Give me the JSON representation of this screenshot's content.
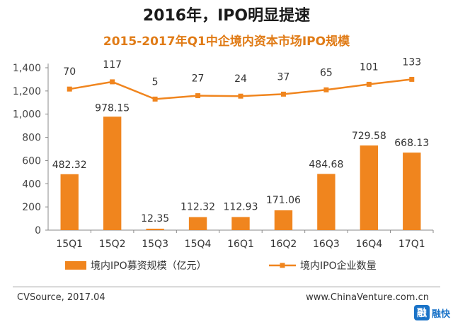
{
  "header": {
    "title": "2016年，IPO明显提速"
  },
  "chart_data": {
    "type": "bar",
    "title": "2015-2017年Q1中企境内资本市场IPO规模",
    "categories": [
      "15Q1",
      "15Q2",
      "15Q3",
      "15Q4",
      "16Q1",
      "16Q2",
      "16Q3",
      "16Q4",
      "17Q1"
    ],
    "series": [
      {
        "name": "境内IPO募资规模（亿元）",
        "type": "bar",
        "axis": "left",
        "color": "#f0851e",
        "values": [
          482.32,
          978.15,
          12.35,
          112.32,
          112.93,
          171.06,
          484.68,
          729.58,
          668.13
        ],
        "labels": [
          "482.32",
          "978.15",
          "12.35",
          "112.32",
          "112.93",
          "171.06",
          "484.68",
          "729.58",
          "668.13"
        ]
      },
      {
        "name": "境内IPO企业数量",
        "type": "line",
        "axis": "right",
        "color": "#f0851e",
        "values": [
          70,
          117,
          5,
          27,
          24,
          37,
          65,
          101,
          133
        ],
        "labels": [
          "70",
          "117",
          "5",
          "27",
          "24",
          "37",
          "65",
          "101",
          "133"
        ]
      }
    ],
    "yaxis": {
      "range": [
        0,
        1400
      ],
      "ticks": [
        0,
        200,
        400,
        600,
        800,
        1000,
        1200,
        1400
      ],
      "tick_labels": [
        "0",
        "200",
        "400",
        "600",
        "800",
        "1,000",
        "1,200",
        "1,400"
      ]
    },
    "grid": false,
    "legend_position": "bottom"
  },
  "footer": {
    "source": "CVSource, 2017.04",
    "website": "www.ChinaVenture.com.cn",
    "logo_mark": "融",
    "logo_text": "融快"
  }
}
